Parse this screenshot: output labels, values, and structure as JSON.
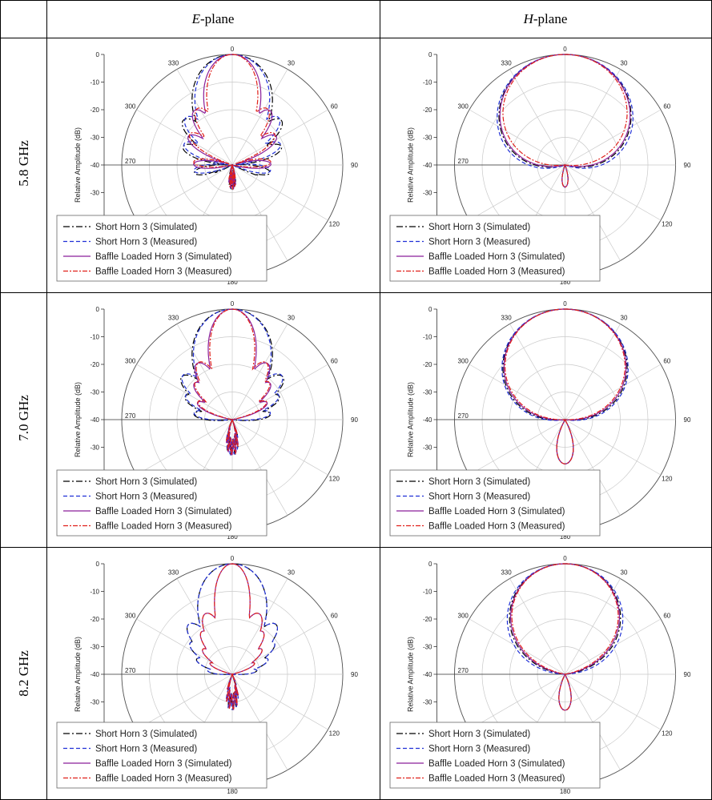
{
  "table": {
    "col_headers": [
      {
        "letter": "E",
        "suffix": "-plane"
      },
      {
        "letter": "H",
        "suffix": "-plane"
      }
    ],
    "row_labels": [
      "5.8 GHz",
      "7.0 GHz",
      "8.2 GHz"
    ]
  },
  "chart_data": [
    {
      "type": "polar",
      "plane": "E",
      "freq": "5.8 GHz",
      "ylabel": "Relative Amplitude (dB)",
      "r_ticks": [
        "0",
        "-10",
        "-20",
        "-30",
        "-40",
        "-30",
        "-20",
        "-10",
        "0"
      ],
      "angle_labels": [
        "0",
        "30",
        "60",
        "90",
        "120",
        "180",
        "270",
        "300",
        "330"
      ],
      "rlim": [
        -40,
        0
      ],
      "legend_position": "bottom-left",
      "lobes": [
        6,
        28,
        60
      ],
      "back_level": -34,
      "series": [
        {
          "name": "Short Horn 3 (Simulated)",
          "color": "#000000",
          "dash": "8,3,2,3",
          "main_width": 26
        },
        {
          "name": "Short Horn 3 (Measured)",
          "color": "#1f2fd6",
          "dash": "5,3",
          "main_width": 24
        },
        {
          "name": "Baffle Loaded Horn 3 (Simulated)",
          "color": "#8a1f9a",
          "dash": "",
          "main_width": 18
        },
        {
          "name": "Baffle Loaded Horn 3 (Measured)",
          "color": "#e0201a",
          "dash": "6,2,2,2",
          "main_width": 16
        }
      ]
    },
    {
      "type": "polar",
      "plane": "H",
      "freq": "5.8 GHz",
      "ylabel": "Relative Amplitude (dB)",
      "r_ticks": [
        "0",
        "-10",
        "-20",
        "-30",
        "-40",
        "-30",
        "-20",
        "-10",
        "0"
      ],
      "angle_labels": [
        "0",
        "30",
        "60",
        "90",
        "120",
        "180",
        "270",
        "300",
        "330"
      ],
      "rlim": [
        -40,
        0
      ],
      "legend_position": "bottom-left",
      "lobes": [],
      "back_level": -32,
      "series": [
        {
          "name": "Short Horn 3 (Simulated)",
          "color": "#000000",
          "dash": "8,3,2,3",
          "main_width": 48
        },
        {
          "name": "Short Horn 3 (Measured)",
          "color": "#1f2fd6",
          "dash": "5,3",
          "main_width": 50
        },
        {
          "name": "Baffle Loaded Horn 3 (Simulated)",
          "color": "#8a1f9a",
          "dash": "",
          "main_width": 47
        },
        {
          "name": "Baffle Loaded Horn 3 (Measured)",
          "color": "#e0201a",
          "dash": "6,2,2,2",
          "main_width": 44
        }
      ]
    },
    {
      "type": "polar",
      "plane": "E",
      "freq": "7.0 GHz",
      "ylabel": "Relative Amplitude (dB)",
      "r_ticks": [
        "0",
        "-10",
        "-20",
        "-30",
        "-40",
        "-30",
        "-20",
        "-10",
        "0"
      ],
      "angle_labels": [
        "0",
        "30",
        "60",
        "90",
        "120",
        "180",
        "270",
        "300",
        "330"
      ],
      "rlim": [
        -40,
        0
      ],
      "legend_position": "bottom-left",
      "lobes": [
        8,
        22,
        40
      ],
      "back_level": -30,
      "series": [
        {
          "name": "Short Horn 3 (Simulated)",
          "color": "#000000",
          "dash": "8,3,2,3",
          "main_width": 26
        },
        {
          "name": "Short Horn 3 (Measured)",
          "color": "#1f2fd6",
          "dash": "5,3",
          "main_width": 25
        },
        {
          "name": "Baffle Loaded Horn 3 (Simulated)",
          "color": "#8a1f9a",
          "dash": "",
          "main_width": 15
        },
        {
          "name": "Baffle Loaded Horn 3 (Measured)",
          "color": "#e0201a",
          "dash": "6,2,2,2",
          "main_width": 14
        }
      ]
    },
    {
      "type": "polar",
      "plane": "H",
      "freq": "7.0 GHz",
      "ylabel": "Relative Amplitude (dB)",
      "r_ticks": [
        "0",
        "-10",
        "-20",
        "-30",
        "-40",
        "-30",
        "-20",
        "-10",
        "0"
      ],
      "angle_labels": [
        "0",
        "30",
        "60",
        "90",
        "120",
        "180",
        "270",
        "300",
        "330"
      ],
      "rlim": [
        -40,
        0
      ],
      "legend_position": "bottom-left",
      "lobes": [],
      "back_level": -24,
      "series": [
        {
          "name": "Short Horn 3 (Simulated)",
          "color": "#000000",
          "dash": "8,3,2,3",
          "main_width": 44
        },
        {
          "name": "Short Horn 3 (Measured)",
          "color": "#1f2fd6",
          "dash": "5,3",
          "main_width": 45
        },
        {
          "name": "Baffle Loaded Horn 3 (Simulated)",
          "color": "#8a1f9a",
          "dash": "",
          "main_width": 43
        },
        {
          "name": "Baffle Loaded Horn 3 (Measured)",
          "color": "#e0201a",
          "dash": "6,2,2,2",
          "main_width": 42
        }
      ]
    },
    {
      "type": "polar",
      "plane": "E",
      "freq": "8.2 GHz",
      "ylabel": "Relative Amplitude (dB)",
      "r_ticks": [
        "0",
        "-10",
        "-20",
        "-30",
        "-40",
        "-30",
        "-20",
        "-10",
        "0"
      ],
      "angle_labels": [
        "0",
        "30",
        "60",
        "90",
        "120",
        "180",
        "270",
        "300",
        "330"
      ],
      "rlim": [
        -40,
        0
      ],
      "legend_position": "bottom-left",
      "lobes": [
        6,
        18,
        32,
        46
      ],
      "back_level": -30,
      "series": [
        {
          "name": "Short Horn 3 (Simulated)",
          "color": "#000000",
          "dash": "8,3,2,3",
          "main_width": 22
        },
        {
          "name": "Short Horn 3 (Measured)",
          "color": "#1f2fd6",
          "dash": "5,3",
          "main_width": 22
        },
        {
          "name": "Baffle Loaded Horn 3 (Simulated)",
          "color": "#8a1f9a",
          "dash": "",
          "main_width": 11
        },
        {
          "name": "Baffle Loaded Horn 3 (Measured)",
          "color": "#e0201a",
          "dash": "6,2,2,2",
          "main_width": 11
        }
      ]
    },
    {
      "type": "polar",
      "plane": "H",
      "freq": "8.2 GHz",
      "ylabel": "Relative Amplitude (dB)",
      "r_ticks": [
        "0",
        "-10",
        "-20",
        "-30",
        "-40",
        "-30",
        "-20",
        "-10",
        "0"
      ],
      "angle_labels": [
        "0",
        "30",
        "60",
        "90",
        "120",
        "180",
        "270",
        "300",
        "330"
      ],
      "rlim": [
        -40,
        0
      ],
      "legend_position": "bottom-left",
      "lobes": [],
      "back_level": -27,
      "series": [
        {
          "name": "Short Horn 3 (Simulated)",
          "color": "#000000",
          "dash": "8,3,2,3",
          "main_width": 38
        },
        {
          "name": "Short Horn 3 (Measured)",
          "color": "#1f2fd6",
          "dash": "5,3",
          "main_width": 40
        },
        {
          "name": "Baffle Loaded Horn 3 (Simulated)",
          "color": "#8a1f9a",
          "dash": "",
          "main_width": 37
        },
        {
          "name": "Baffle Loaded Horn 3 (Measured)",
          "color": "#e0201a",
          "dash": "6,2,2,2",
          "main_width": 36
        }
      ]
    }
  ]
}
